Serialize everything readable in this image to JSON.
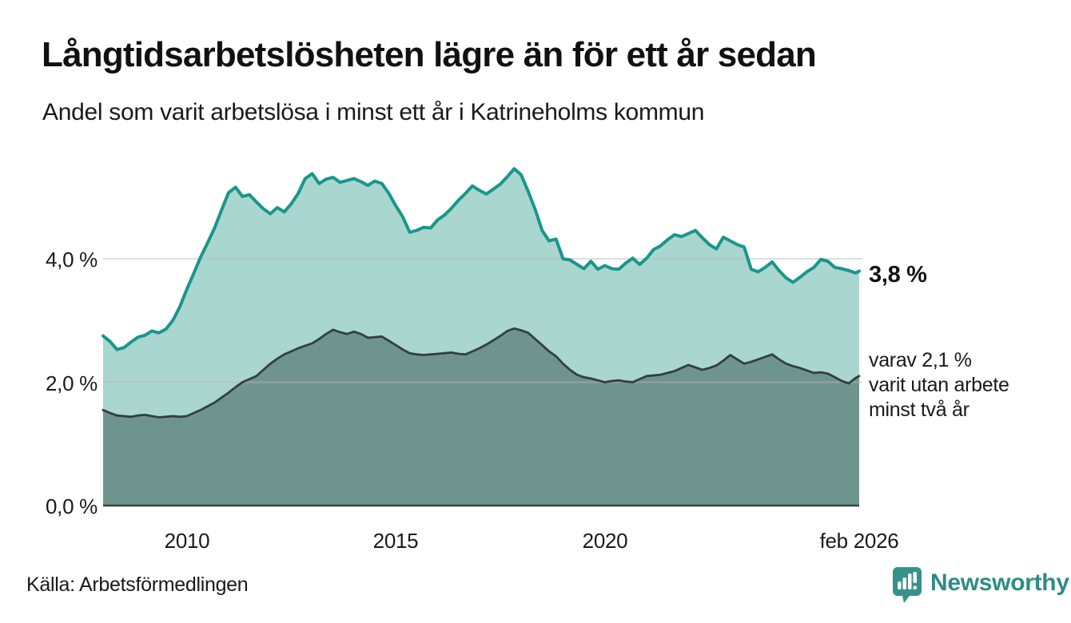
{
  "header": {
    "title": "Långtidsarbetslösheten lägre än för ett år sedan",
    "subtitle": "Andel som varit arbetslösa i minst ett år i Katrineholms kommun"
  },
  "footer": {
    "source": "Källa: Arbetsförmedlingen",
    "logo_text": "Newsworthy",
    "logo_icon": "bar-chart-speech-bubble-icon"
  },
  "colors": {
    "total_line": "#1a968b",
    "total_fill": "#a9d6ce",
    "two_year_line": "#32403d",
    "two_year_fill": "#6f948e",
    "gridline": "#b9b9b9",
    "axis_line": "#3b433f",
    "text": "#1a1a1a",
    "logo_teal": "#35928a"
  },
  "chart_data": {
    "type": "area",
    "title": "Långtidsarbetslösheten lägre än för ett år sedan",
    "subtitle": "Andel som varit arbetslösa i minst ett år i Katrineholms kommun",
    "unit": "%",
    "grid": true,
    "legend_position": "none",
    "x_start": "jan 2008",
    "x_end": "feb 2026",
    "months_per_point": 2,
    "total_months": 217,
    "ylim": [
      0,
      5.8
    ],
    "y_ticks": [
      {
        "value": 0,
        "label": "0,0 %"
      },
      {
        "value": 2,
        "label": "2,0 %"
      },
      {
        "value": 4,
        "label": "4,0 %"
      }
    ],
    "x_ticks": [
      {
        "month": 24,
        "label": "2010"
      },
      {
        "month": 84,
        "label": "2015"
      },
      {
        "month": 144,
        "label": "2020"
      },
      {
        "month": 217,
        "label": "feb 2026"
      }
    ],
    "series": [
      {
        "name": "Arbetslösa minst ett år",
        "latest_value": 3.8,
        "values": [
          2.75,
          2.66,
          2.53,
          2.56,
          2.65,
          2.73,
          2.76,
          2.83,
          2.8,
          2.86,
          3.0,
          3.22,
          3.5,
          3.76,
          4.03,
          4.26,
          4.5,
          4.79,
          5.07,
          5.16,
          5.01,
          5.04,
          4.92,
          4.81,
          4.73,
          4.83,
          4.76,
          4.89,
          5.06,
          5.3,
          5.38,
          5.22,
          5.29,
          5.32,
          5.24,
          5.27,
          5.3,
          5.25,
          5.19,
          5.26,
          5.22,
          5.06,
          4.86,
          4.68,
          4.43,
          4.46,
          4.51,
          4.5,
          4.63,
          4.71,
          4.82,
          4.95,
          5.06,
          5.18,
          5.11,
          5.05,
          5.13,
          5.21,
          5.33,
          5.46,
          5.36,
          5.09,
          4.8,
          4.46,
          4.29,
          4.32,
          4.0,
          3.98,
          3.91,
          3.84,
          3.96,
          3.83,
          3.89,
          3.84,
          3.83,
          3.93,
          4.01,
          3.91,
          4.01,
          4.15,
          4.21,
          4.31,
          4.39,
          4.36,
          4.41,
          4.46,
          4.34,
          4.23,
          4.16,
          4.35,
          4.29,
          4.23,
          4.19,
          3.83,
          3.79,
          3.86,
          3.95,
          3.81,
          3.69,
          3.62,
          3.7,
          3.79,
          3.86,
          3.99,
          3.96,
          3.86,
          3.84,
          3.81,
          3.77,
          3.8
        ]
      },
      {
        "name": "Arbetslösa minst två år",
        "latest_value": 2.1,
        "values": [
          1.55,
          1.5,
          1.46,
          1.45,
          1.44,
          1.46,
          1.47,
          1.45,
          1.43,
          1.44,
          1.45,
          1.44,
          1.45,
          1.5,
          1.55,
          1.61,
          1.67,
          1.75,
          1.83,
          1.92,
          2.0,
          2.05,
          2.1,
          2.2,
          2.3,
          2.38,
          2.45,
          2.5,
          2.55,
          2.59,
          2.63,
          2.7,
          2.78,
          2.85,
          2.81,
          2.78,
          2.82,
          2.78,
          2.72,
          2.73,
          2.74,
          2.67,
          2.6,
          2.53,
          2.47,
          2.45,
          2.44,
          2.45,
          2.46,
          2.47,
          2.48,
          2.46,
          2.45,
          2.5,
          2.55,
          2.61,
          2.68,
          2.75,
          2.83,
          2.87,
          2.84,
          2.8,
          2.7,
          2.6,
          2.5,
          2.42,
          2.3,
          2.2,
          2.12,
          2.08,
          2.06,
          2.03,
          2.0,
          2.02,
          2.03,
          2.01,
          2.0,
          2.05,
          2.1,
          2.11,
          2.12,
          2.15,
          2.18,
          2.23,
          2.28,
          2.24,
          2.2,
          2.23,
          2.27,
          2.35,
          2.44,
          2.37,
          2.3,
          2.33,
          2.37,
          2.41,
          2.45,
          2.37,
          2.3,
          2.26,
          2.23,
          2.19,
          2.15,
          2.16,
          2.14,
          2.08,
          2.02,
          1.98,
          2.07,
          2.1
        ]
      }
    ],
    "annotations": {
      "latest_total_label": "3,8 %",
      "two_year_lines": [
        "varav 2,1 %",
        "varit utan arbete",
        "minst två år"
      ]
    }
  }
}
